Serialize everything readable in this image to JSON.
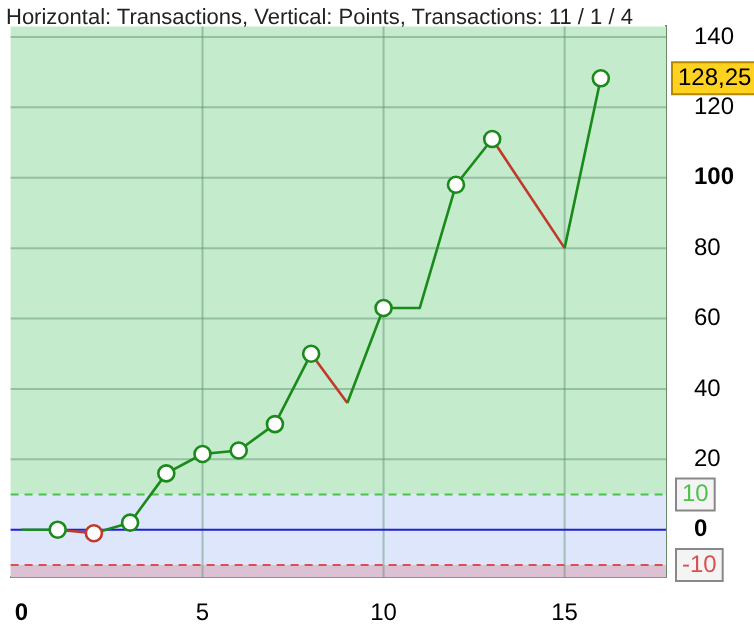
{
  "chart_data": {
    "type": "line",
    "title": "Horizontal: Transactions, Vertical: Points, Transactions: 11 / 1 / 4",
    "xlim": [
      -0.3,
      17.8
    ],
    "xticks": [
      0,
      5,
      10,
      15
    ],
    "ylim": [
      -13.5,
      143
    ],
    "yticks": [
      0,
      20,
      40,
      60,
      80,
      100,
      120,
      140
    ],
    "grid": true,
    "legend": false,
    "series": [
      {
        "type": "line",
        "marker": "none",
        "color": "#1a8a1a",
        "x": [
          0,
          1,
          1.5,
          2,
          3,
          4,
          5,
          6,
          7,
          8,
          8.5,
          9,
          10,
          11,
          12,
          13,
          14,
          15,
          16
        ],
        "values": [
          0,
          0,
          null,
          -1,
          2,
          16,
          21.5,
          22.5,
          30,
          50,
          null,
          36,
          63,
          63,
          98,
          111,
          null,
          80,
          128.25
        ]
      },
      {
        "type": "line",
        "marker": "none",
        "color": "#c0392b",
        "x": [
          1,
          2,
          5,
          8,
          9,
          11,
          13,
          15
        ],
        "values": [
          0,
          -1,
          null,
          50,
          36,
          null,
          111,
          80
        ]
      },
      {
        "type": "scatter",
        "marker": "circle",
        "x": [
          1,
          2,
          3,
          4,
          5,
          6,
          7,
          8,
          10,
          12,
          13,
          16
        ],
        "values": [
          0,
          -1,
          2,
          16,
          21.5,
          22.5,
          30,
          50,
          63,
          98,
          111,
          128.25
        ],
        "colors": [
          "#1a8a1a",
          "#c0392b",
          "#1a8a1a",
          "#1a8a1a",
          "#1a8a1a",
          "#1a8a1a",
          "#1a8a1a",
          "#1a8a1a",
          "#1a8a1a",
          "#1a8a1a",
          "#1a8a1a",
          "#1a8a1a"
        ]
      }
    ],
    "bands": [
      {
        "axis": "y",
        "from": 10,
        "to": 143,
        "color": "#c4ebcc"
      },
      {
        "axis": "y",
        "from": -10,
        "to": 10,
        "color": "#dde6fa"
      },
      {
        "axis": "y",
        "from": -13.5,
        "to": -10,
        "color": "#dcc0d4"
      }
    ],
    "ref_lines": [
      {
        "axis": "y",
        "value": 0,
        "color": "#1f1fd6",
        "line_style": "solid"
      },
      {
        "axis": "y",
        "value": 10,
        "label": "10",
        "color": "#4cc24c",
        "line_style": "dashed"
      },
      {
        "axis": "y",
        "value": -10,
        "label": "-10",
        "color": "#d85050",
        "line_style": "dashed"
      }
    ],
    "annotations": [
      "128,25"
    ]
  }
}
